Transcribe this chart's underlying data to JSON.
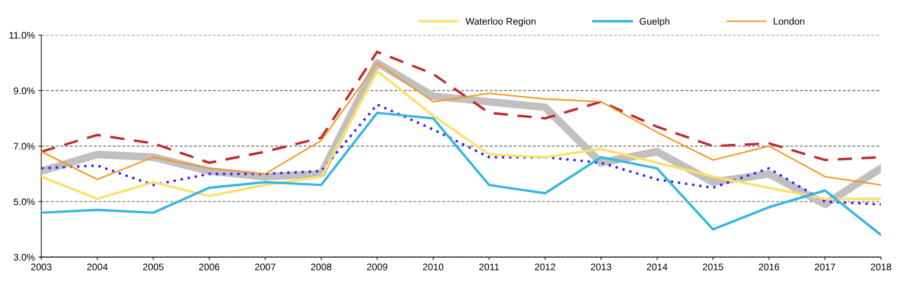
{
  "chart_data": {
    "type": "line",
    "x": [
      2003,
      2004,
      2005,
      2006,
      2007,
      2008,
      2009,
      2010,
      2011,
      2012,
      2013,
      2014,
      2015,
      2016,
      2017,
      2018
    ],
    "xlim": [
      2003,
      2018
    ],
    "xticks": [
      2003,
      2004,
      2005,
      2006,
      2007,
      2008,
      2009,
      2010,
      2011,
      2012,
      2013,
      2014,
      2015,
      2016,
      2017,
      2018
    ],
    "ylim": [
      3,
      11
    ],
    "yticks": [
      {
        "value": 3,
        "label": "3.0%"
      },
      {
        "value": 5,
        "label": "5.0%"
      },
      {
        "value": 7,
        "label": "7.0%"
      },
      {
        "value": 9,
        "label": "9.0%"
      },
      {
        "value": 11,
        "label": "11.0%"
      }
    ],
    "grid": "y",
    "legend": "top",
    "marker": "none",
    "series": [
      {
        "color": "#c0c0c0",
        "line_style": "solid",
        "values": [
          6.1,
          6.7,
          6.6,
          6.1,
          5.9,
          6.0,
          10.0,
          8.8,
          8.6,
          8.4,
          6.4,
          6.8,
          5.7,
          6.0,
          4.9,
          6.2
        ]
      },
      {
        "color": "#c0282d",
        "line_style": "dashed",
        "values": [
          6.8,
          7.4,
          7.1,
          6.4,
          6.8,
          7.3,
          10.4,
          9.6,
          8.2,
          8.0,
          8.6,
          7.7,
          7.0,
          7.1,
          6.5,
          6.6
        ]
      },
      {
        "color": "#3a1aff",
        "line_style": "dotted",
        "values": [
          6.2,
          6.3,
          5.6,
          6.0,
          6.0,
          6.1,
          8.5,
          7.6,
          6.6,
          6.6,
          6.4,
          5.8,
          5.5,
          6.2,
          5.0,
          4.9
        ]
      },
      {
        "name": "Waterloo Region",
        "color": "#ffe066",
        "line_style": "solid",
        "values": [
          5.9,
          5.1,
          5.7,
          5.2,
          5.6,
          5.9,
          9.7,
          8.1,
          6.7,
          6.6,
          6.9,
          6.4,
          5.9,
          5.5,
          5.1,
          5.1
        ]
      },
      {
        "name": "Guelph",
        "color": "#33b5e5",
        "line_style": "solid",
        "values": [
          4.6,
          4.7,
          4.6,
          5.5,
          5.7,
          5.6,
          8.2,
          8.0,
          5.6,
          5.3,
          6.6,
          6.2,
          4.0,
          4.8,
          5.4,
          3.8
        ]
      },
      {
        "name": "London",
        "color": "#f7941d",
        "line_style": "solid",
        "values": [
          6.8,
          5.8,
          6.6,
          6.2,
          6.0,
          7.2,
          10.0,
          8.6,
          8.9,
          8.7,
          8.6,
          7.5,
          6.5,
          7.0,
          5.9,
          5.6
        ]
      }
    ]
  }
}
